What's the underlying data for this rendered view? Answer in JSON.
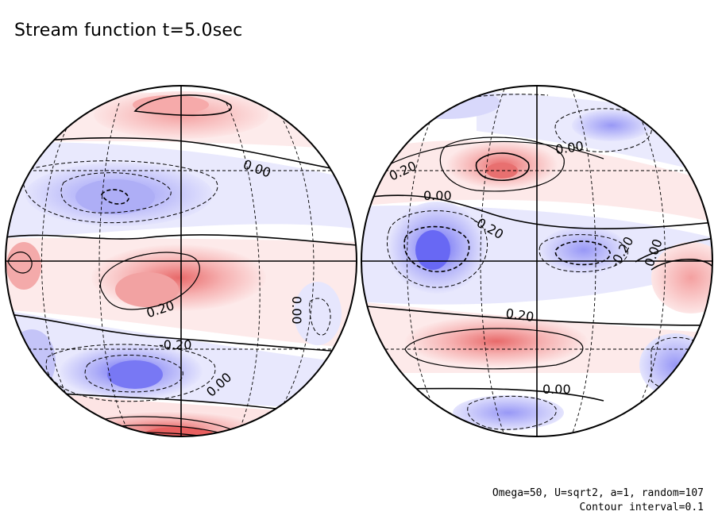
{
  "figure": {
    "title": "Stream function t=5.0sec",
    "footer_params": "Omega=50, U=sqrt2, a=1, random=107",
    "footer_interval": "Contour interval=0.1"
  },
  "left_globe": {
    "labels": [
      "0.00",
      "0.20",
      "-0.20",
      "0.00",
      "0.00"
    ]
  },
  "right_globe": {
    "labels": [
      "0.00",
      "0.20",
      "0.00",
      "-0.20",
      "-0.20",
      "0.00",
      "0.20",
      "0.00"
    ]
  },
  "colors": {
    "positive": "#f08a8a",
    "negative": "#8a8af5",
    "contour": "#000000"
  }
}
